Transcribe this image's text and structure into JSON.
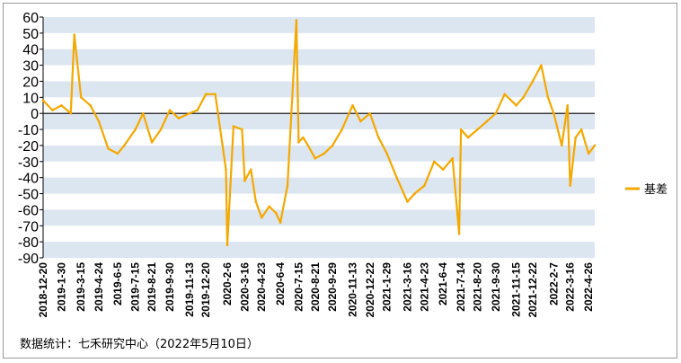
{
  "chart_data": {
    "type": "line",
    "title": "",
    "xlabel": "",
    "ylabel": "",
    "ylim": [
      -90,
      60
    ],
    "yticks": [
      60,
      50,
      40,
      30,
      20,
      10,
      0,
      -10,
      -20,
      -30,
      -40,
      -50,
      -60,
      -70,
      -80,
      -90
    ],
    "grid": "horizontal alternating bands",
    "legend_position": "right",
    "x_tick_labels": [
      "2018-12-20",
      "2019-1-30",
      "2019-3-15",
      "2019-4-24",
      "2019-6-5",
      "2019-7-15",
      "2019-8-21",
      "2019-9-30",
      "2019-11-13",
      "2019-12-20",
      "2020-2-6",
      "2020-3-16",
      "2020-4-23",
      "2020-6-4",
      "2020-7-15",
      "2020-8-21",
      "2020-9-29",
      "2020-11-13",
      "2020-12-22",
      "2021-1-29",
      "2021-3-16",
      "2021-4-23",
      "2021-6-4",
      "2021-7-14",
      "2021-8-20",
      "2021-9-30",
      "2021-11-15",
      "2021-12-22",
      "2022-2-7",
      "2022-3-16",
      "2022-4-26"
    ],
    "series": [
      {
        "name": "基差",
        "color": "#f5a800",
        "x": [
          "2018-12-20",
          "2019-1-10",
          "2019-1-30",
          "2019-2-20",
          "2019-2-28",
          "2019-3-15",
          "2019-4-5",
          "2019-4-24",
          "2019-5-15",
          "2019-6-5",
          "2019-6-20",
          "2019-7-15",
          "2019-8-1",
          "2019-8-21",
          "2019-9-10",
          "2019-9-30",
          "2019-10-20",
          "2019-11-13",
          "2019-12-1",
          "2019-12-20",
          "2020-1-10",
          "2020-2-3",
          "2020-2-6",
          "2020-2-20",
          "2020-3-10",
          "2020-3-16",
          "2020-3-30",
          "2020-4-10",
          "2020-4-23",
          "2020-5-10",
          "2020-5-25",
          "2020-6-4",
          "2020-6-20",
          "2020-7-10",
          "2020-7-15",
          "2020-7-25",
          "2020-8-5",
          "2020-8-21",
          "2020-9-10",
          "2020-9-29",
          "2020-10-20",
          "2020-11-13",
          "2020-12-1",
          "2020-12-22",
          "2021-1-10",
          "2021-1-29",
          "2021-2-20",
          "2021-3-16",
          "2021-4-1",
          "2021-4-23",
          "2021-5-15",
          "2021-6-4",
          "2021-6-25",
          "2021-7-10",
          "2021-7-14",
          "2021-7-30",
          "2021-8-20",
          "2021-9-10",
          "2021-9-30",
          "2021-10-20",
          "2021-11-15",
          "2021-12-1",
          "2021-12-22",
          "2022-1-10",
          "2022-1-25",
          "2022-2-7",
          "2022-2-25",
          "2022-3-10",
          "2022-3-16",
          "2022-3-28",
          "2022-4-10",
          "2022-4-26",
          "2022-5-10"
        ],
        "values": [
          8,
          2,
          5,
          0,
          49,
          10,
          5,
          -5,
          -22,
          -25,
          -20,
          -10,
          0,
          -18,
          -10,
          2,
          -3,
          0,
          2,
          12,
          12,
          -35,
          -82,
          -8,
          -10,
          -42,
          -35,
          -55,
          -65,
          -58,
          -62,
          -68,
          -45,
          58,
          -18,
          -15,
          -20,
          -28,
          -25,
          -20,
          -10,
          5,
          -5,
          0,
          -15,
          -25,
          -40,
          -55,
          -50,
          -45,
          -30,
          -35,
          -28,
          -75,
          -10,
          -15,
          -10,
          -5,
          0,
          12,
          5,
          10,
          20,
          30,
          10,
          0,
          -20,
          5,
          -45,
          -15,
          -10,
          -25,
          -20
        ]
      }
    ]
  },
  "source_note": "数据统计：七禾研究中心（2022年5月10日）"
}
